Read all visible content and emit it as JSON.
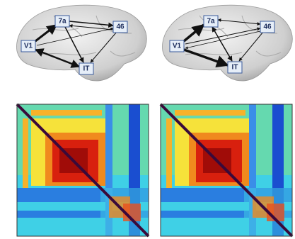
{
  "panels": [
    {
      "nodes": [
        {
          "label": "7a"
        },
        {
          "label": "46"
        },
        {
          "label": "V1"
        },
        {
          "label": "IT"
        }
      ]
    },
    {
      "nodes": [
        {
          "label": "7a"
        },
        {
          "label": "46"
        },
        {
          "label": "V1"
        },
        {
          "label": "IT"
        }
      ]
    }
  ]
}
